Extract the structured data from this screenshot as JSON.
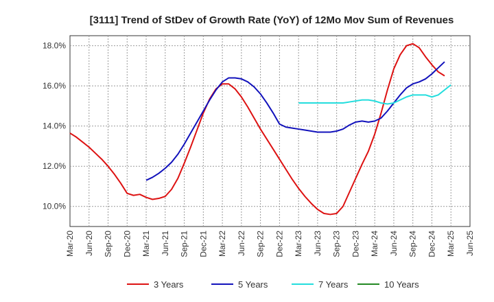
{
  "chart_data": {
    "type": "line",
    "title": "[3111]  Trend of StDev of Growth Rate (YoY) of 12Mo Mov Sum of Revenues",
    "xlabel": "",
    "ylabel": "",
    "x_ticks": [
      "Mar-20",
      "Jun-20",
      "Sep-20",
      "Dec-20",
      "Mar-21",
      "Jun-21",
      "Sep-21",
      "Dec-21",
      "Mar-22",
      "Jun-22",
      "Sep-22",
      "Dec-22",
      "Mar-23",
      "Jun-23",
      "Sep-23",
      "Dec-23",
      "Mar-24",
      "Jun-24",
      "Sep-24",
      "Dec-24",
      "Mar-25",
      "Jun-25"
    ],
    "y_ticks": [
      10.0,
      12.0,
      14.0,
      16.0,
      18.0
    ],
    "y_tick_labels": [
      "10.0%",
      "12.0%",
      "14.0%",
      "16.0%",
      "18.0%"
    ],
    "ylim": [
      9.0,
      18.5
    ],
    "xlim_months": [
      0,
      63
    ],
    "grid": true,
    "legend_position": "bottom",
    "series": [
      {
        "name": "3 Years",
        "color": "#dd1111",
        "start_month": 0,
        "values": [
          13.65,
          13.45,
          13.2,
          12.95,
          12.65,
          12.35,
          12.0,
          11.6,
          11.15,
          10.65,
          10.55,
          10.6,
          10.45,
          10.35,
          10.4,
          10.5,
          10.85,
          11.4,
          12.15,
          12.95,
          13.8,
          14.65,
          15.35,
          15.85,
          16.1,
          16.1,
          15.85,
          15.45,
          14.95,
          14.4,
          13.85,
          13.35,
          12.85,
          12.35,
          11.85,
          11.35,
          10.9,
          10.5,
          10.15,
          9.85,
          9.65,
          9.6,
          9.65,
          10.0,
          10.7,
          11.4,
          12.1,
          12.75,
          13.6,
          14.65,
          15.8,
          16.85,
          17.55,
          18.0,
          18.1,
          17.9,
          17.45,
          17.05,
          16.7,
          16.5
        ]
      },
      {
        "name": "5 Years",
        "color": "#1111bb",
        "start_month": 12,
        "values": [
          11.3,
          11.45,
          11.65,
          11.9,
          12.2,
          12.6,
          13.1,
          13.65,
          14.2,
          14.75,
          15.3,
          15.8,
          16.2,
          16.4,
          16.4,
          16.35,
          16.2,
          15.95,
          15.6,
          15.15,
          14.65,
          14.1,
          13.95,
          13.9,
          13.85,
          13.8,
          13.75,
          13.7,
          13.7,
          13.7,
          13.75,
          13.85,
          14.05,
          14.2,
          14.25,
          14.2,
          14.25,
          14.4,
          14.75,
          15.15,
          15.55,
          15.9,
          16.1,
          16.2,
          16.35,
          16.6,
          16.9,
          17.2
        ]
      },
      {
        "name": "7 Years",
        "color": "#22dddd",
        "start_month": 36,
        "values": [
          15.15,
          15.15,
          15.15,
          15.15,
          15.15,
          15.15,
          15.15,
          15.15,
          15.2,
          15.25,
          15.3,
          15.3,
          15.25,
          15.15,
          15.1,
          15.15,
          15.3,
          15.45,
          15.55,
          15.55,
          15.55,
          15.45,
          15.55,
          15.8,
          16.05
        ]
      },
      {
        "name": "10 Years",
        "color": "#228822",
        "start_month": 0,
        "values": []
      }
    ]
  }
}
